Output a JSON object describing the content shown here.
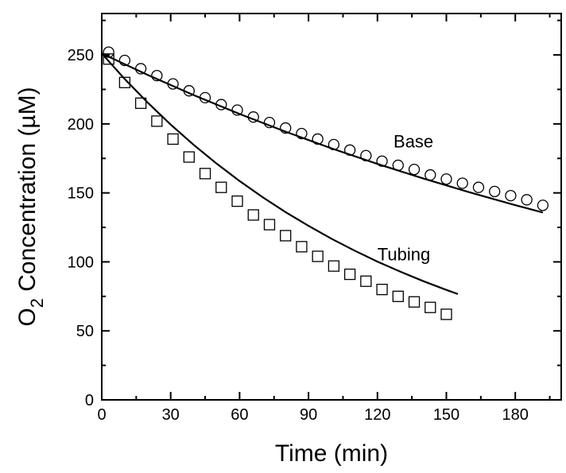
{
  "chart_data": {
    "type": "scatter",
    "title": "",
    "xlabel": "Time (min)",
    "ylabel": {
      "main": "O",
      "subscript": "2",
      "rest": " Concentration (",
      "mu": "µ",
      "unit": "M)"
    },
    "xlim": [
      0,
      200
    ],
    "ylim": [
      0,
      280
    ],
    "x_ticks": [
      0,
      30,
      60,
      90,
      120,
      150,
      180
    ],
    "y_ticks": [
      0,
      50,
      100,
      150,
      200,
      250
    ],
    "grid": false,
    "legend": "none",
    "series": [
      {
        "name": "Base",
        "marker": "circle",
        "x": [
          3,
          10,
          17,
          24,
          31,
          38,
          45,
          52,
          59,
          66,
          73,
          80,
          87,
          94,
          101,
          108,
          115,
          122,
          129,
          136,
          143,
          150,
          157,
          164,
          171,
          178,
          185,
          192
        ],
        "y": [
          252,
          246,
          240,
          235,
          229,
          224,
          219,
          214,
          210,
          205,
          201,
          197,
          193,
          189,
          185,
          181,
          177,
          173,
          170,
          167,
          163,
          160,
          157,
          154,
          151,
          148,
          145,
          141
        ],
        "fit_x": [
          0,
          20,
          40,
          60,
          80,
          100,
          120,
          140,
          160,
          180,
          192
        ],
        "fit_y": [
          251,
          235.5,
          220.9,
          207.2,
          194.4,
          182.3,
          171.0,
          160.4,
          150.5,
          141.1,
          135.8
        ]
      },
      {
        "name": "Tubing",
        "marker": "square",
        "x": [
          3,
          10,
          17,
          24,
          31,
          38,
          45,
          52,
          59,
          66,
          73,
          80,
          87,
          94,
          101,
          108,
          115,
          122,
          129,
          136,
          143,
          150
        ],
        "y": [
          247,
          230,
          215,
          202,
          189,
          176,
          164,
          154,
          144,
          134,
          127,
          119,
          111,
          104,
          97,
          91,
          86,
          80,
          75,
          71,
          67,
          62
        ],
        "fit_x": [
          0,
          10,
          20,
          30,
          40,
          50,
          60,
          70,
          80,
          90,
          100,
          110,
          120,
          130,
          140,
          150,
          155
        ],
        "fit_y": [
          251,
          232.5,
          215.4,
          199.5,
          184.8,
          171.2,
          158.6,
          146.9,
          136.1,
          126.1,
          116.8,
          108.2,
          100.2,
          92.9,
          86.0,
          79.7,
          76.7
        ]
      }
    ],
    "annotations": [
      {
        "text": "Base",
        "x": 127,
        "y": 183
      },
      {
        "text": "Tubing",
        "x": 120,
        "y": 101
      }
    ]
  }
}
